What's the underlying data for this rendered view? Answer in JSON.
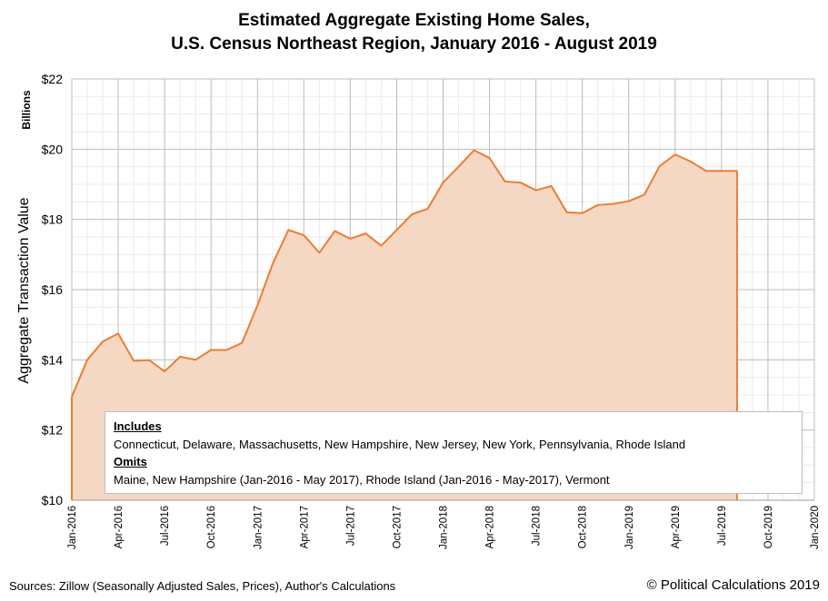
{
  "chart_data": {
    "type": "area",
    "title": [
      "Estimated Aggregate Existing Home Sales,",
      "U.S. Census Northeast Region, January 2016 - August 2019"
    ],
    "ylabel": "Aggregate Transaction Value",
    "yunits": "Billions",
    "ylim": [
      10,
      22
    ],
    "yticks": [
      10,
      12,
      14,
      16,
      18,
      20,
      22
    ],
    "ytick_labels": [
      "$10",
      "$12",
      "$14",
      "$16",
      "$18",
      "$20",
      "$22"
    ],
    "xlim": [
      "2016-01",
      "2020-01"
    ],
    "xticks": [
      "2016-01",
      "2016-04",
      "2016-07",
      "2016-10",
      "2017-01",
      "2017-04",
      "2017-07",
      "2017-10",
      "2018-01",
      "2018-04",
      "2018-07",
      "2018-10",
      "2019-01",
      "2019-04",
      "2019-07",
      "2019-10",
      "2020-01"
    ],
    "xtick_labels": [
      "Jan-2016",
      "Apr-2016",
      "Jul-2016",
      "Oct-2016",
      "Jan-2017",
      "Apr-2017",
      "Jul-2017",
      "Oct-2017",
      "Jan-2018",
      "Apr-2018",
      "Jul-2018",
      "Oct-2018",
      "Jan-2019",
      "Apr-2019",
      "Jul-2019",
      "Oct-2019",
      "Jan-2020"
    ],
    "grid": true,
    "x": [
      "2016-01",
      "2016-02",
      "2016-03",
      "2016-04",
      "2016-05",
      "2016-06",
      "2016-07",
      "2016-08",
      "2016-09",
      "2016-10",
      "2016-11",
      "2016-12",
      "2017-01",
      "2017-02",
      "2017-03",
      "2017-04",
      "2017-05",
      "2017-06",
      "2017-07",
      "2017-08",
      "2017-09",
      "2017-10",
      "2017-11",
      "2017-12",
      "2018-01",
      "2018-02",
      "2018-03",
      "2018-04",
      "2018-05",
      "2018-06",
      "2018-07",
      "2018-08",
      "2018-09",
      "2018-10",
      "2018-11",
      "2018-12",
      "2019-01",
      "2019-02",
      "2019-03",
      "2019-04",
      "2019-05",
      "2019-06",
      "2019-07",
      "2019-08"
    ],
    "values": [
      12.95,
      14.0,
      14.52,
      14.75,
      13.97,
      13.99,
      13.67,
      14.09,
      14.0,
      14.28,
      14.28,
      14.48,
      15.55,
      16.75,
      17.7,
      17.55,
      17.05,
      17.67,
      17.45,
      17.6,
      17.25,
      17.7,
      18.15,
      18.3,
      19.05,
      19.5,
      19.97,
      19.75,
      19.08,
      19.05,
      18.83,
      18.95,
      18.2,
      18.18,
      18.41,
      18.44,
      18.52,
      18.7,
      19.52,
      19.85,
      19.65,
      19.38,
      19.38,
      19.38
    ],
    "line_color": "#ed7d31",
    "fill_color": "#f4d8c4"
  },
  "legend": {
    "includes_heading": "Includes",
    "includes_text": "Connecticut,  Delaware, Massachusetts, New Hampshire,  New Jersey, New York,  Pennsylvania, Rhode Island",
    "omits_heading": "Omits",
    "omits_text": "Maine, New Hampshire (Jan-2016 - May 2017), Rhode Island (Jan-2016 - May-2017),  Vermont"
  },
  "footer": {
    "sources": "Sources: Zillow (Seasonally Adjusted Sales, Prices), Author's Calculations",
    "copyright": "© Political Calculations 2019"
  }
}
